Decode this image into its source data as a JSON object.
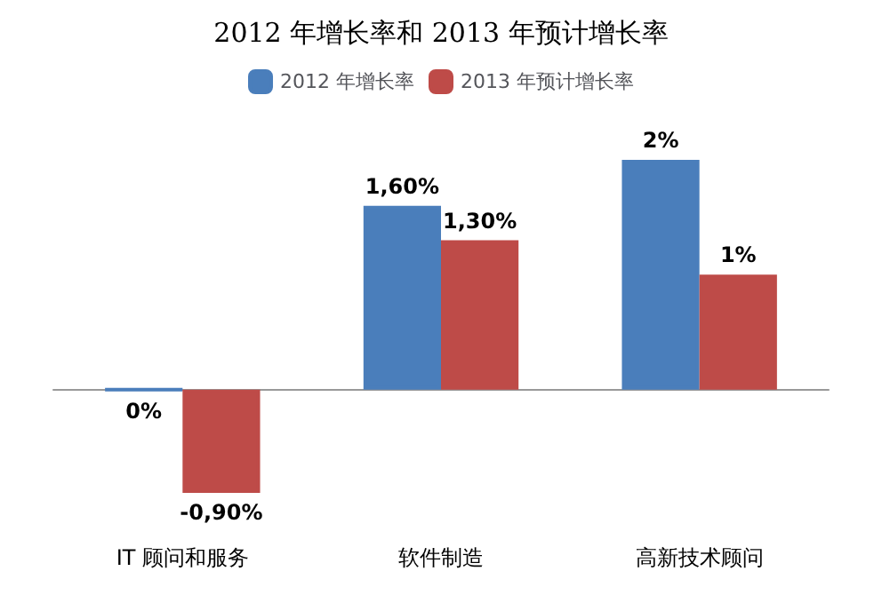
{
  "chart_data": {
    "type": "bar",
    "title": "2012 年增长率和 2013 年预计增长率",
    "categories": [
      "IT 顾问和服务",
      "软件制造",
      "高新技术顾问"
    ],
    "series": [
      {
        "name": "2012 年增长率",
        "color": "#4a7ebb",
        "values": [
          0,
          1.6,
          2
        ],
        "value_labels": [
          "0%",
          "1,60%",
          "2%"
        ]
      },
      {
        "name": "2013 年预计增长率",
        "color": "#be4b48",
        "values": [
          -0.9,
          1.3,
          1
        ],
        "value_labels": [
          "-0,90%",
          "1,30%",
          "1%"
        ]
      }
    ],
    "legend": "top",
    "tick_labels": "x"
  }
}
